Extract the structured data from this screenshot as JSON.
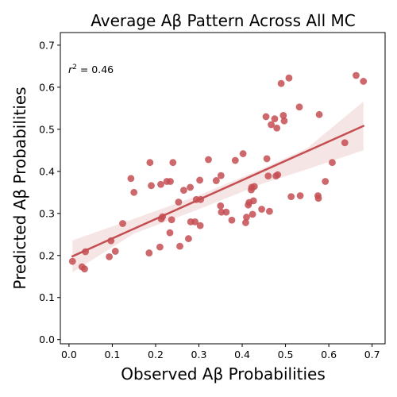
{
  "chart_data": {
    "type": "scatter",
    "title": "Average Aβ Pattern Across All MC",
    "xlabel": "Observed Aβ Probabilities",
    "ylabel": "Predicted Aβ Probabilities",
    "annotation": {
      "prefix": "r",
      "exponent": "2",
      "suffix": " = 0.46"
    },
    "xlim": [
      -0.02,
      0.73
    ],
    "ylim": [
      -0.01,
      0.73
    ],
    "xticks": [
      "0.0",
      "0.1",
      "0.2",
      "0.3",
      "0.4",
      "0.5",
      "0.6",
      "0.7"
    ],
    "yticks": [
      "0.0",
      "0.1",
      "0.2",
      "0.3",
      "0.4",
      "0.5",
      "0.6",
      "0.7"
    ],
    "grid": false,
    "color": "#c44e52",
    "regression": {
      "x": [
        0.008,
        0.68
      ],
      "y": [
        0.198,
        0.508
      ]
    },
    "confidence_band": {
      "x": [
        0.008,
        0.15,
        0.3,
        0.45,
        0.55,
        0.68
      ],
      "lower": [
        0.16,
        0.252,
        0.31,
        0.372,
        0.405,
        0.45
      ],
      "upper": [
        0.236,
        0.287,
        0.343,
        0.408,
        0.455,
        0.566
      ]
    },
    "points": [
      [
        0.008,
        0.186
      ],
      [
        0.03,
        0.173
      ],
      [
        0.036,
        0.168
      ],
      [
        0.038,
        0.209
      ],
      [
        0.093,
        0.197
      ],
      [
        0.097,
        0.235
      ],
      [
        0.107,
        0.21
      ],
      [
        0.124,
        0.276
      ],
      [
        0.143,
        0.383
      ],
      [
        0.15,
        0.35
      ],
      [
        0.185,
        0.206
      ],
      [
        0.187,
        0.421
      ],
      [
        0.19,
        0.366
      ],
      [
        0.21,
        0.22
      ],
      [
        0.212,
        0.369
      ],
      [
        0.213,
        0.287
      ],
      [
        0.216,
        0.292
      ],
      [
        0.226,
        0.376
      ],
      [
        0.233,
        0.254
      ],
      [
        0.234,
        0.376
      ],
      [
        0.237,
        0.285
      ],
      [
        0.24,
        0.421
      ],
      [
        0.253,
        0.327
      ],
      [
        0.256,
        0.222
      ],
      [
        0.265,
        0.355
      ],
      [
        0.276,
        0.24
      ],
      [
        0.28,
        0.362
      ],
      [
        0.281,
        0.28
      ],
      [
        0.291,
        0.28
      ],
      [
        0.294,
        0.333
      ],
      [
        0.302,
        0.379
      ],
      [
        0.303,
        0.271
      ],
      [
        0.304,
        0.333
      ],
      [
        0.322,
        0.428
      ],
      [
        0.34,
        0.378
      ],
      [
        0.35,
        0.318
      ],
      [
        0.351,
        0.39
      ],
      [
        0.352,
        0.303
      ],
      [
        0.363,
        0.303
      ],
      [
        0.376,
        0.284
      ],
      [
        0.384,
        0.426
      ],
      [
        0.402,
        0.442
      ],
      [
        0.408,
        0.278
      ],
      [
        0.41,
        0.291
      ],
      [
        0.414,
        0.32
      ],
      [
        0.416,
        0.326
      ],
      [
        0.421,
        0.356
      ],
      [
        0.422,
        0.362
      ],
      [
        0.424,
        0.298
      ],
      [
        0.426,
        0.33
      ],
      [
        0.428,
        0.364
      ],
      [
        0.445,
        0.31
      ],
      [
        0.455,
        0.53
      ],
      [
        0.457,
        0.43
      ],
      [
        0.46,
        0.389
      ],
      [
        0.463,
        0.305
      ],
      [
        0.467,
        0.511
      ],
      [
        0.475,
        0.525
      ],
      [
        0.478,
        0.389
      ],
      [
        0.48,
        0.503
      ],
      [
        0.482,
        0.392
      ],
      [
        0.49,
        0.609
      ],
      [
        0.495,
        0.533
      ],
      [
        0.497,
        0.52
      ],
      [
        0.508,
        0.622
      ],
      [
        0.513,
        0.34
      ],
      [
        0.532,
        0.553
      ],
      [
        0.534,
        0.342
      ],
      [
        0.575,
        0.342
      ],
      [
        0.576,
        0.336
      ],
      [
        0.578,
        0.535
      ],
      [
        0.592,
        0.376
      ],
      [
        0.608,
        0.421
      ],
      [
        0.637,
        0.468
      ],
      [
        0.663,
        0.628
      ],
      [
        0.68,
        0.614
      ]
    ]
  }
}
